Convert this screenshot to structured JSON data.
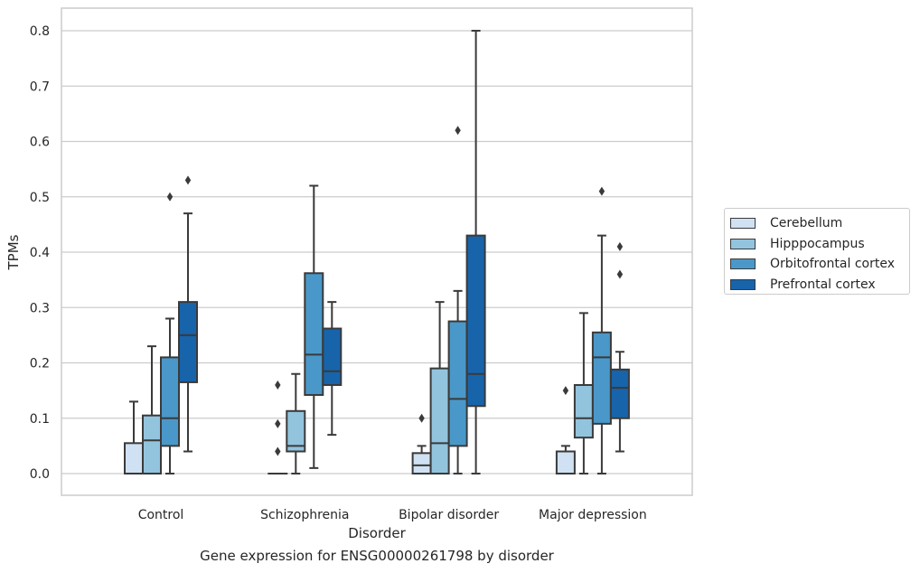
{
  "chart_data": {
    "type": "boxplot",
    "xlabel": "Disorder",
    "ylabel": "TPMs",
    "ylim": [
      -0.04,
      0.84
    ],
    "yticks": [
      0.0,
      0.1,
      0.2,
      0.3,
      0.4,
      0.5,
      0.6,
      0.7,
      0.8
    ],
    "ytick_labels": [
      "0.0",
      "0.1",
      "0.2",
      "0.3",
      "0.4",
      "0.5",
      "0.6",
      "0.7",
      "0.8"
    ],
    "grid": true,
    "legend_position": "right-center",
    "categories": [
      "Control",
      "Schizophrenia",
      "Bipolar disorder",
      "Major depression"
    ],
    "series": [
      {
        "name": "Cerebellum",
        "color": "#cfe1f2",
        "boxes": [
          {
            "whislo": 0.0,
            "q1": 0.0,
            "med": 0.0,
            "q3": 0.055,
            "whishi": 0.13,
            "fliers": []
          },
          {
            "whislo": 0.0,
            "q1": 0.0,
            "med": 0.0,
            "q3": 0.0,
            "whishi": 0.0,
            "fliers": [
              0.16,
              0.09,
              0.04
            ]
          },
          {
            "whislo": 0.0,
            "q1": 0.0,
            "med": 0.015,
            "q3": 0.037,
            "whishi": 0.05,
            "fliers": [
              0.1
            ]
          },
          {
            "whislo": 0.0,
            "q1": 0.0,
            "med": 0.0,
            "q3": 0.04,
            "whishi": 0.05,
            "fliers": [
              0.15
            ]
          }
        ]
      },
      {
        "name": "Hipppocampus",
        "color": "#93c4de",
        "boxes": [
          {
            "whislo": 0.0,
            "q1": 0.0,
            "med": 0.06,
            "q3": 0.105,
            "whishi": 0.23,
            "fliers": []
          },
          {
            "whislo": 0.0,
            "q1": 0.04,
            "med": 0.05,
            "q3": 0.113,
            "whishi": 0.18,
            "fliers": []
          },
          {
            "whislo": 0.0,
            "q1": 0.0,
            "med": 0.055,
            "q3": 0.19,
            "whishi": 0.31,
            "fliers": []
          },
          {
            "whislo": 0.0,
            "q1": 0.065,
            "med": 0.1,
            "q3": 0.16,
            "whishi": 0.29,
            "fliers": []
          }
        ]
      },
      {
        "name": "Orbitofrontal cortex",
        "color": "#4a98c9",
        "boxes": [
          {
            "whislo": 0.0,
            "q1": 0.05,
            "med": 0.1,
            "q3": 0.21,
            "whishi": 0.28,
            "fliers": [
              0.5
            ]
          },
          {
            "whislo": 0.01,
            "q1": 0.142,
            "med": 0.215,
            "q3": 0.362,
            "whishi": 0.52,
            "fliers": []
          },
          {
            "whislo": 0.0,
            "q1": 0.05,
            "med": 0.135,
            "q3": 0.275,
            "whishi": 0.33,
            "fliers": [
              0.62
            ]
          },
          {
            "whislo": 0.0,
            "q1": 0.09,
            "med": 0.21,
            "q3": 0.255,
            "whishi": 0.43,
            "fliers": [
              0.51
            ]
          }
        ]
      },
      {
        "name": "Prefrontal cortex",
        "color": "#1764ab",
        "boxes": [
          {
            "whislo": 0.04,
            "q1": 0.165,
            "med": 0.25,
            "q3": 0.31,
            "whishi": 0.47,
            "fliers": [
              0.53
            ]
          },
          {
            "whislo": 0.07,
            "q1": 0.16,
            "med": 0.185,
            "q3": 0.262,
            "whishi": 0.31,
            "fliers": []
          },
          {
            "whislo": 0.0,
            "q1": 0.122,
            "med": 0.18,
            "q3": 0.43,
            "whishi": 0.8,
            "fliers": []
          },
          {
            "whislo": 0.04,
            "q1": 0.1,
            "med": 0.155,
            "q3": 0.188,
            "whishi": 0.22,
            "fliers": [
              0.41,
              0.36
            ]
          }
        ]
      }
    ]
  },
  "caption": "Gene expression for ENSG00000261798 by disorder"
}
